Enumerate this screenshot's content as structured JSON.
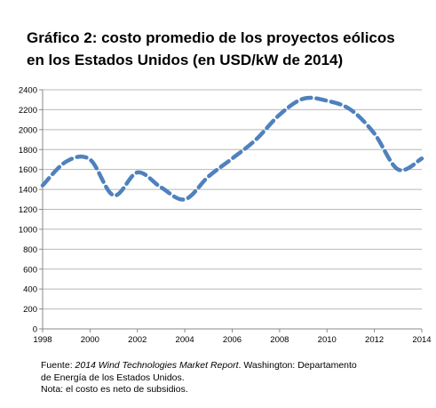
{
  "title": {
    "line1": "Gráfico 2: costo promedio de los proyectos eólicos",
    "line2": "en los Estados Unidos (en USD/kW de 2014)"
  },
  "footnote": {
    "source_prefix": "Fuente: ",
    "source_title": "2014 Wind Technologies Market Report",
    "source_suffix": ". Washington: Departamento",
    "line2": "de Energía de los Estados Unidos.",
    "line3": "Nota: el costo es neto de subsidios."
  },
  "chart_data": {
    "type": "line",
    "title": "Gráfico 2: costo promedio de los proyectos eólicos en los Estados Unidos (en USD/kW de 2014)",
    "xlabel": "",
    "ylabel": "",
    "xlim": [
      1998,
      2014
    ],
    "ylim": [
      0,
      2400
    ],
    "x_ticks": [
      1998,
      2000,
      2002,
      2004,
      2006,
      2008,
      2010,
      2012,
      2014
    ],
    "y_ticks": [
      0,
      200,
      400,
      600,
      800,
      1000,
      1200,
      1400,
      1600,
      1800,
      2000,
      2200,
      2400
    ],
    "grid": "horizontal",
    "legend": "none",
    "line_style": "dashed",
    "color": "#4f81bd",
    "series": [
      {
        "name": "",
        "x": [
          1998,
          1999,
          2000,
          2001,
          2002,
          2003,
          2004,
          2005,
          2006,
          2007,
          2008,
          2009,
          2010,
          2011,
          2012,
          2013,
          2014
        ],
        "y": [
          1440,
          1680,
          1700,
          1340,
          1570,
          1420,
          1300,
          1530,
          1710,
          1900,
          2150,
          2310,
          2290,
          2200,
          1960,
          1600,
          1710
        ]
      }
    ]
  }
}
